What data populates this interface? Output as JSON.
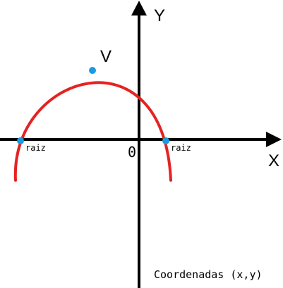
{
  "labels": {
    "x_axis": "X",
    "y_axis": "Y",
    "origin": "0",
    "vertex": "V",
    "root_left": "raiz",
    "root_right": "raiz",
    "caption": "Coordenadas (x,y)"
  },
  "colors": {
    "axis": "#000000",
    "curve": "#e52222",
    "points": "#1a9be0",
    "background": "#ffffff"
  }
}
